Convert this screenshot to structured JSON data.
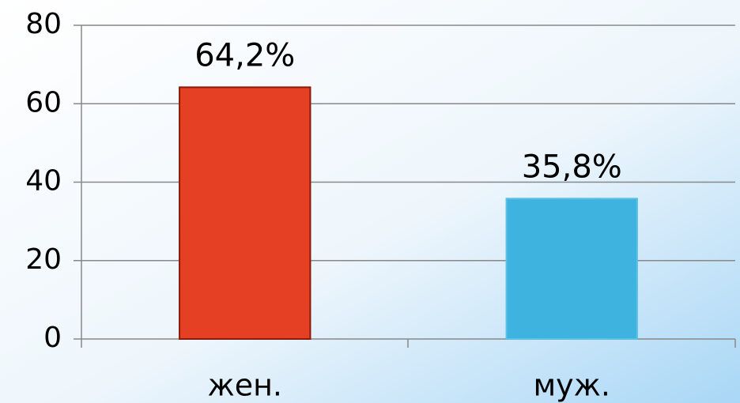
{
  "chart_data": {
    "type": "bar",
    "categories": [
      "жен.",
      "муж."
    ],
    "values": [
      64.2,
      35.8
    ],
    "value_labels": [
      "64,2%",
      "35,8%"
    ],
    "colors": [
      "#e54023",
      "#3eb3e0"
    ],
    "ylim": [
      0,
      80
    ],
    "yticks": [
      0,
      20,
      40,
      60,
      80
    ],
    "grid": true
  }
}
